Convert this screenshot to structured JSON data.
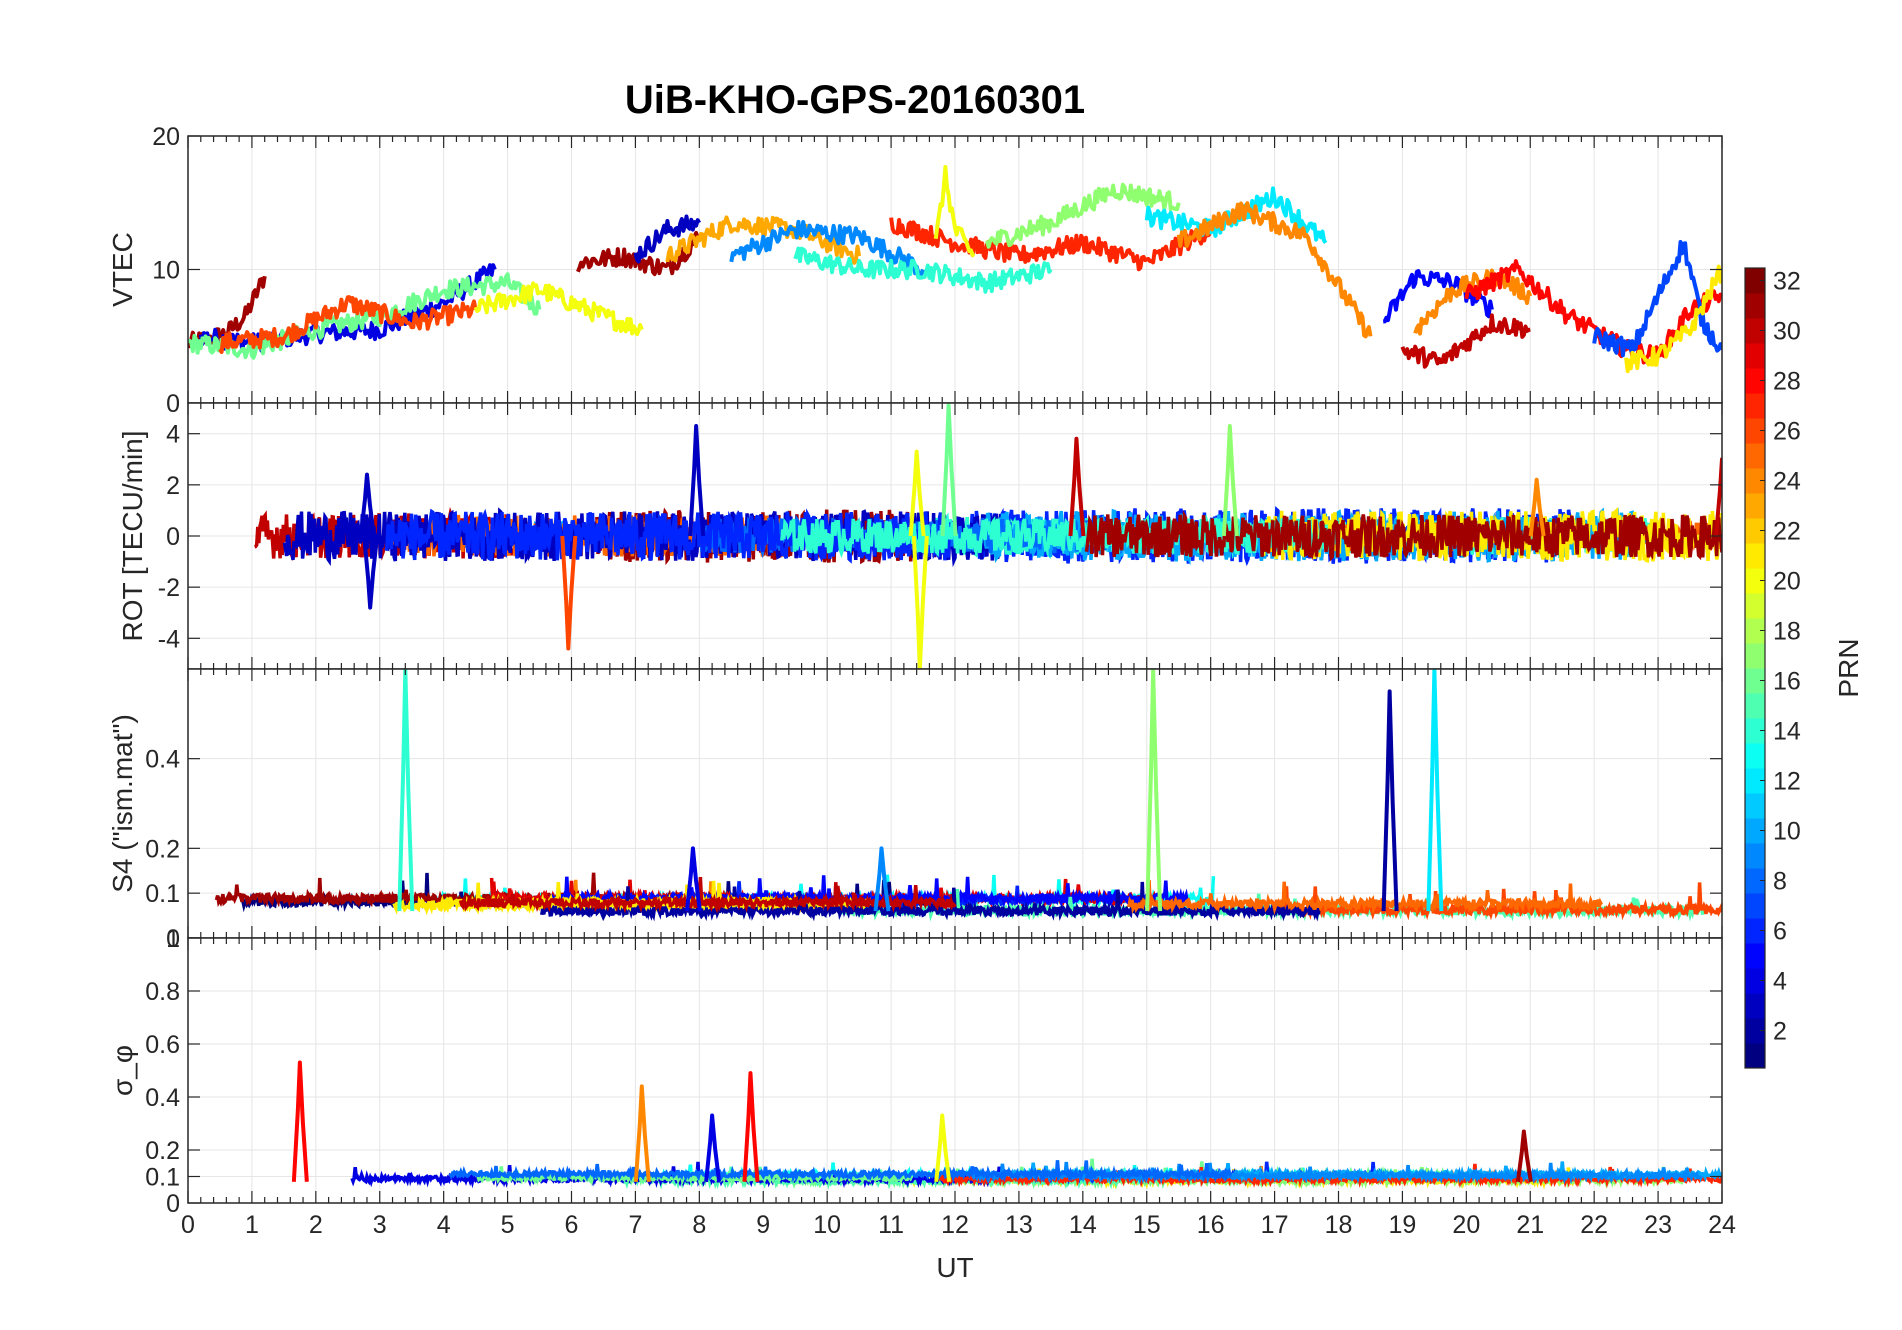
{
  "chart_data": {
    "type": "line",
    "title": "UiB-KHO-GPS-20160301",
    "xlabel": "UT",
    "xlim": [
      0,
      24
    ],
    "xticks": [
      "0",
      "1",
      "2",
      "3",
      "4",
      "5",
      "6",
      "7",
      "8",
      "9",
      "10",
      "11",
      "12",
      "13",
      "14",
      "15",
      "16",
      "17",
      "18",
      "19",
      "20",
      "21",
      "22",
      "23",
      "24"
    ],
    "grid": true,
    "colorbar": {
      "label": "PRN",
      "range": [
        1,
        32
      ],
      "ticks": [
        "2",
        "4",
        "6",
        "8",
        "10",
        "12",
        "14",
        "16",
        "18",
        "20",
        "22",
        "24",
        "26",
        "28",
        "30",
        "32"
      ],
      "colormap": "jet"
    },
    "panels": [
      {
        "name": "vtec",
        "ylabel": "VTEC",
        "ylim": [
          0,
          20
        ],
        "yticks": [
          "0",
          "10",
          "20"
        ],
        "series": [
          {
            "prn": 31,
            "x": [
              0,
              0.3,
              0.6,
              0.9,
              1.2
            ],
            "y": [
              4.5,
              4.8,
              5.2,
              6.5,
              9.5
            ]
          },
          {
            "prn": 4,
            "x": [
              0.2,
              1,
              2,
              3,
              4,
              4.8
            ],
            "y": [
              5,
              4.5,
              5.2,
              5.5,
              7.5,
              10
            ]
          },
          {
            "prn": 16,
            "x": [
              0,
              1,
              2,
              3,
              4,
              5,
              5.5
            ],
            "y": [
              4.5,
              4,
              5.5,
              6.5,
              8.5,
              9,
              7
            ]
          },
          {
            "prn": 26,
            "x": [
              0.5,
              1.5,
              2.5,
              3.5,
              4.5
            ],
            "y": [
              4.5,
              5,
              7.5,
              6,
              7
            ]
          },
          {
            "prn": 20,
            "x": [
              4.5,
              5.5,
              6.5,
              7.1
            ],
            "y": [
              7,
              8.5,
              6.5,
              5.5
            ]
          },
          {
            "prn": 31,
            "x": [
              6.1,
              6.8,
              7.5,
              8
            ],
            "y": [
              10.5,
              11,
              10,
              12.5
            ]
          },
          {
            "prn": 3,
            "x": [
              7,
              7.5,
              8
            ],
            "y": [
              11,
              13,
              13.5
            ]
          },
          {
            "prn": 23,
            "x": [
              7.5,
              8.5,
              9.5,
              10.5
            ],
            "y": [
              11,
              13.5,
              13,
              11
            ]
          },
          {
            "prn": 9,
            "x": [
              8.5,
              9.5,
              10.5,
              11.5
            ],
            "y": [
              11,
              13,
              12.5,
              10
            ]
          },
          {
            "prn": 14,
            "x": [
              9.5,
              10.5,
              11.5,
              12.5,
              13.5
            ],
            "y": [
              11,
              10,
              10,
              9,
              10
            ]
          },
          {
            "prn": 27,
            "x": [
              11,
              12,
              13,
              14,
              15,
              16
            ],
            "y": [
              13.5,
              12,
              11,
              12,
              10.5,
              13
            ]
          },
          {
            "prn": 20,
            "x": [
              11.7,
              11.85,
              12,
              12.3
            ],
            "y": [
              12,
              17,
              13,
              11
            ]
          },
          {
            "prn": 17,
            "x": [
              12.5,
              13.5,
              14.5,
              15.5
            ],
            "y": [
              12,
              13.5,
              16,
              15
            ]
          },
          {
            "prn": 12,
            "x": [
              15,
              16,
              17,
              17.8
            ],
            "y": [
              14,
              13,
              15.5,
              12
            ]
          },
          {
            "prn": 24,
            "x": [
              15.5,
              16.5,
              17.5,
              18.5
            ],
            "y": [
              12,
              14.5,
              12.5,
              5
            ]
          },
          {
            "prn": 5,
            "x": [
              18.7,
              19.2,
              19.8,
              20.4
            ],
            "y": [
              6,
              9.5,
              9,
              7
            ]
          },
          {
            "prn": 24,
            "x": [
              19.2,
              19.8,
              20.5,
              21
            ],
            "y": [
              5.5,
              8.5,
              9.5,
              8
            ]
          },
          {
            "prn": 30,
            "x": [
              19,
              19.6,
              20.4,
              21
            ],
            "y": [
              4,
              3,
              6,
              5.5
            ]
          },
          {
            "prn": 28,
            "x": [
              20,
              20.8,
              21.6,
              22.5,
              23,
              23.5,
              24
            ],
            "y": [
              8,
              10,
              6.5,
              4,
              3.5,
              7,
              8
            ]
          },
          {
            "prn": 7,
            "x": [
              22,
              22.6,
              23,
              23.4,
              23.7,
              24
            ],
            "y": [
              5,
              4,
              8,
              12,
              6,
              4
            ]
          },
          {
            "prn": 21,
            "x": [
              22.5,
              23,
              23.5,
              24
            ],
            "y": [
              3,
              3.5,
              5.5,
              10
            ]
          }
        ]
      },
      {
        "name": "rot",
        "ylabel": "ROT [TECU/min]",
        "ylim": [
          -5.2,
          5.2
        ],
        "yticks": [
          "-4",
          "-2",
          "0",
          "2",
          "4"
        ],
        "description": "noisy ROT traces for all PRNs oscillating around 0, typically within ±1 TECU/min with spikes",
        "spikes": [
          {
            "prn": 3,
            "x": 7.95,
            "y": 4.3
          },
          {
            "prn": 3,
            "x": 2.85,
            "y": -2.8
          },
          {
            "prn": 3,
            "x": 2.8,
            "y": 2.4
          },
          {
            "prn": 16,
            "x": 11.9,
            "y": 5.1
          },
          {
            "prn": 20,
            "x": 11.45,
            "y": -5.2
          },
          {
            "prn": 20,
            "x": 11.4,
            "y": 3.3
          },
          {
            "prn": 26,
            "x": 5.95,
            "y": -4.4
          },
          {
            "prn": 30,
            "x": 13.9,
            "y": 3.8
          },
          {
            "prn": 17,
            "x": 16.3,
            "y": 4.3
          },
          {
            "prn": 24,
            "x": 21.1,
            "y": 2.2
          },
          {
            "prn": 30,
            "x": 24,
            "y": 3
          }
        ]
      },
      {
        "name": "s4",
        "ylabel": "S4 (\"ism.mat\")",
        "ylim": [
          0,
          0.6
        ],
        "yticks": [
          "0",
          "0.1",
          "0.2",
          "0.4"
        ],
        "description": "S4 index mostly between 0.03 and 0.1 with isolated spikes",
        "spikes": [
          {
            "prn": 14,
            "x": 3.4,
            "y": 0.6
          },
          {
            "prn": 4,
            "x": 7.9,
            "y": 0.2
          },
          {
            "prn": 9,
            "x": 10.85,
            "y": 0.2
          },
          {
            "prn": 17,
            "x": 15.1,
            "y": 0.6
          },
          {
            "prn": 2,
            "x": 18.8,
            "y": 0.55
          },
          {
            "prn": 12,
            "x": 19.5,
            "y": 0.6
          }
        ]
      },
      {
        "name": "sigma_phi",
        "ylabel": "σ_φ",
        "ylim": [
          0,
          1
        ],
        "yticks": [
          "0",
          "0.1",
          "0.2",
          "0.4",
          "0.6",
          "0.8",
          "1"
        ],
        "description": "phase scintillation index mostly near 0.05–0.1 with spikes",
        "spikes": [
          {
            "prn": 28,
            "x": 1.75,
            "y": 0.53
          },
          {
            "prn": 24,
            "x": 7.1,
            "y": 0.44
          },
          {
            "prn": 28,
            "x": 8.8,
            "y": 0.49
          },
          {
            "prn": 4,
            "x": 8.2,
            "y": 0.33
          },
          {
            "prn": 20,
            "x": 11.8,
            "y": 0.33
          },
          {
            "prn": 31,
            "x": 20.9,
            "y": 0.27
          }
        ]
      }
    ]
  }
}
